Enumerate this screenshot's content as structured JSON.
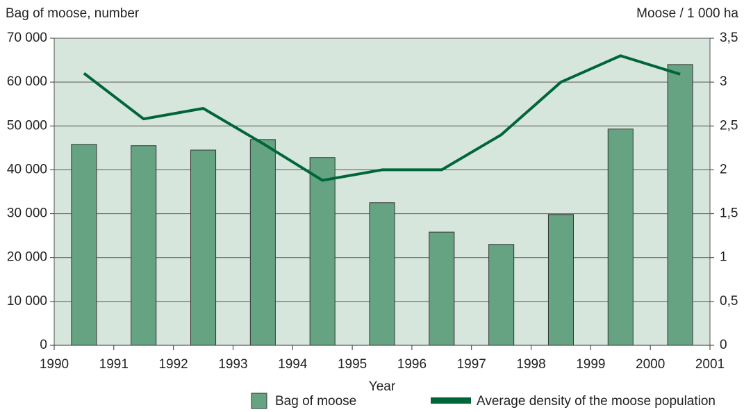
{
  "chart_data": {
    "type": "bar_line",
    "y_axis_title": "Bag of moose, number",
    "y2_axis_title": "Moose / 1 000 ha",
    "x_axis_title": "Year",
    "x": [
      1990.5,
      1991.5,
      1992.5,
      1993.5,
      1994.5,
      1995.5,
      1996.5,
      1997.5,
      1998.5,
      1999.5,
      2000.5
    ],
    "series": [
      {
        "name": "Bag of moose",
        "type": "bar",
        "color": "#66a383",
        "values": [
          45800,
          45500,
          44500,
          46900,
          42800,
          32500,
          25800,
          23000,
          29800,
          49300,
          64000
        ]
      },
      {
        "name": "Average density of the moose population",
        "type": "line",
        "axis": "y2",
        "color": "#00663a",
        "values": [
          3.1,
          2.58,
          2.7,
          2.3,
          1.88,
          2.0,
          2.0,
          2.4,
          3.0,
          3.3,
          3.09
        ]
      }
    ],
    "xlim": [
      1990,
      2001
    ],
    "xticks": [
      1990,
      1991,
      1992,
      1993,
      1994,
      1995,
      1996,
      1997,
      1998,
      1999,
      2000,
      2001
    ],
    "ylim": [
      0,
      70000
    ],
    "yticks": [
      0,
      {
        "value": 10000,
        "label": "10 000"
      },
      {
        "value": 20000,
        "label": "20 000"
      },
      {
        "value": 30000,
        "label": "30 000"
      },
      {
        "value": 40000,
        "label": "40 000"
      },
      {
        "value": 50000,
        "label": "50 000"
      },
      {
        "value": 60000,
        "label": "60 000"
      },
      {
        "value": 70000,
        "label": "70 000"
      }
    ],
    "y2lim": [
      0,
      3.5
    ],
    "y2ticks": [
      0,
      {
        "value": 0.5,
        "label": "0,5"
      },
      1,
      {
        "value": 1.5,
        "label": "1,5"
      },
      2,
      {
        "value": 2.5,
        "label": "2,5"
      },
      3,
      {
        "value": 3.5,
        "label": "3,5"
      }
    ],
    "grid": true,
    "legend": "bottom"
  }
}
